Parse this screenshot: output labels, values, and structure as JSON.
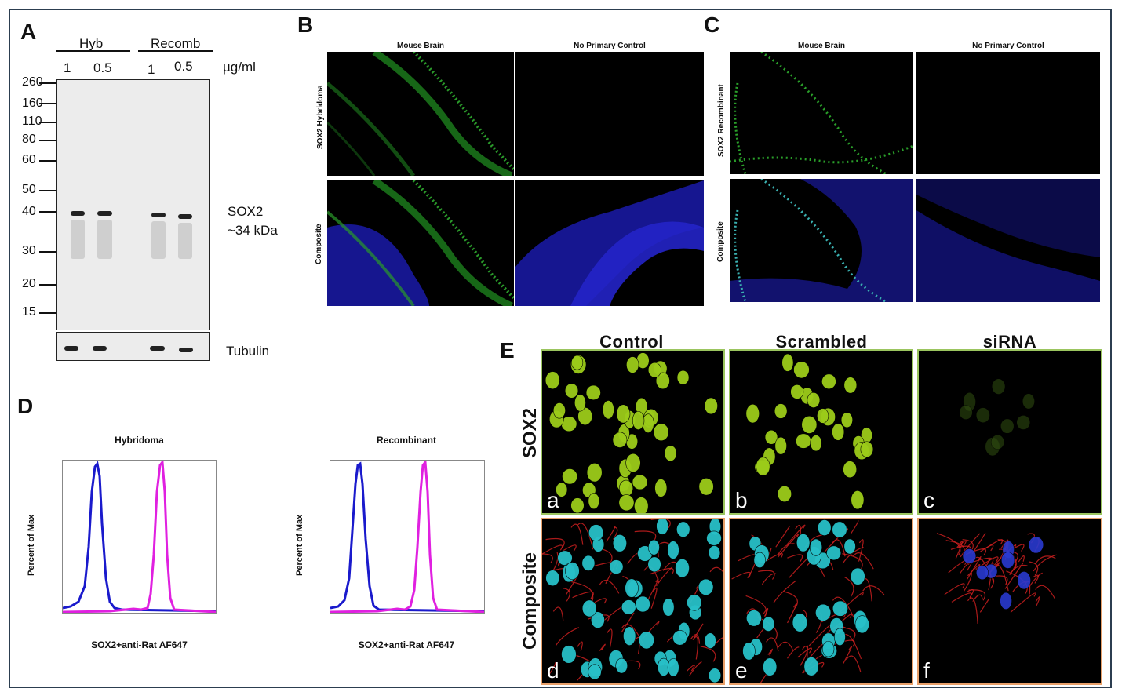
{
  "panel_a": {
    "letter": "A",
    "groups": [
      "Hyb",
      "Recomb"
    ],
    "lanes": [
      "1",
      "0.5",
      "1",
      "0.5"
    ],
    "unit": "µg/ml",
    "markers": [
      "260",
      "160",
      "110",
      "80",
      "60",
      "50",
      "40",
      "30",
      "20",
      "15"
    ],
    "band_label_1": "SOX2",
    "band_label_2": "~34 kDa",
    "loading_label": "Tubulin"
  },
  "panel_b": {
    "letter": "B",
    "col_1": "Mouse Brain",
    "col_2": "No Primary Control",
    "row_1": "SOX2 Hybridoma",
    "row_2": "Composite"
  },
  "panel_c": {
    "letter": "C",
    "col_1": "Mouse Brain",
    "col_2": "No Primary Control",
    "row_1": "SOX2 Recombinant",
    "row_2": "Composite"
  },
  "panel_d": {
    "letter": "D",
    "plots": [
      {
        "title": "Hybridoma",
        "ylabel": "Percent of Max",
        "xlabel": "SOX2+anti-Rat AF647"
      },
      {
        "title": "Recombinant",
        "ylabel": "Percent of Max",
        "xlabel": "SOX2+anti-Rat AF647"
      }
    ],
    "colors": {
      "control": "#1a1acc",
      "stained": "#e020e0"
    }
  },
  "panel_e": {
    "letter": "E",
    "cols": [
      "Control",
      "Scrambled",
      "siRNA"
    ],
    "rows": [
      "SOX2",
      "Composite"
    ],
    "subpanels": [
      "a",
      "b",
      "c",
      "d",
      "e",
      "f"
    ]
  }
}
